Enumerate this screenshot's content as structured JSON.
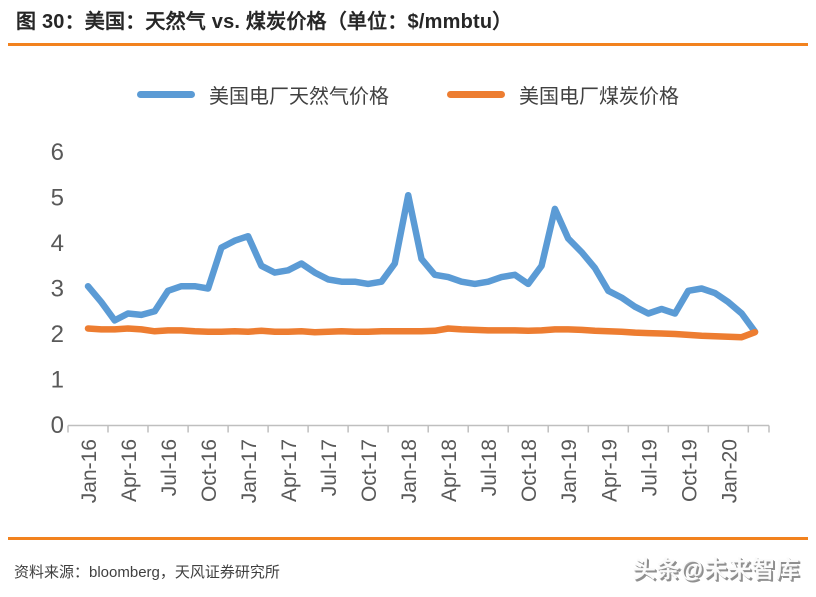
{
  "header": {
    "title": "图 30：美国：天然气 vs. 煤炭价格（单位：$/mmbtu）"
  },
  "chart_data": {
    "type": "line",
    "title": "美国：天然气 vs. 煤炭价格",
    "unit": "$/mmbtu",
    "x": [
      "Jan-16",
      "Feb-16",
      "Mar-16",
      "Apr-16",
      "May-16",
      "Jun-16",
      "Jul-16",
      "Aug-16",
      "Sep-16",
      "Oct-16",
      "Nov-16",
      "Dec-16",
      "Jan-17",
      "Feb-17",
      "Mar-17",
      "Apr-17",
      "May-17",
      "Jun-17",
      "Jul-17",
      "Aug-17",
      "Sep-17",
      "Oct-17",
      "Nov-17",
      "Dec-17",
      "Jan-18",
      "Feb-18",
      "Mar-18",
      "Apr-18",
      "May-18",
      "Jun-18",
      "Jul-18",
      "Aug-18",
      "Sep-18",
      "Oct-18",
      "Nov-18",
      "Dec-18",
      "Jan-19",
      "Feb-19",
      "Mar-19",
      "Apr-19",
      "May-19",
      "Jun-19",
      "Jul-19",
      "Aug-19",
      "Sep-19",
      "Oct-19",
      "Nov-19",
      "Dec-19",
      "Jan-20",
      "Feb-20",
      "Mar-20"
    ],
    "series": [
      {
        "name": "美国电厂天然气价格",
        "color": "#5b9bd5",
        "values": [
          3.05,
          2.7,
          2.3,
          2.45,
          2.42,
          2.5,
          2.95,
          3.05,
          3.05,
          3.0,
          3.9,
          4.05,
          4.15,
          3.5,
          3.35,
          3.4,
          3.55,
          3.35,
          3.2,
          3.15,
          3.15,
          3.1,
          3.15,
          3.55,
          5.05,
          3.65,
          3.3,
          3.25,
          3.15,
          3.1,
          3.15,
          3.25,
          3.3,
          3.1,
          3.5,
          4.75,
          4.1,
          3.8,
          3.45,
          2.95,
          2.8,
          2.6,
          2.45,
          2.55,
          2.45,
          2.95,
          3.0,
          2.9,
          2.7,
          2.45,
          2.05
        ]
      },
      {
        "name": "美国电厂煤炭价格",
        "color": "#ed7d31",
        "values": [
          2.12,
          2.1,
          2.1,
          2.12,
          2.1,
          2.06,
          2.08,
          2.08,
          2.06,
          2.05,
          2.05,
          2.06,
          2.05,
          2.07,
          2.05,
          2.05,
          2.06,
          2.04,
          2.05,
          2.06,
          2.05,
          2.05,
          2.06,
          2.06,
          2.06,
          2.06,
          2.07,
          2.12,
          2.1,
          2.09,
          2.08,
          2.08,
          2.08,
          2.07,
          2.08,
          2.1,
          2.1,
          2.09,
          2.07,
          2.06,
          2.05,
          2.03,
          2.02,
          2.01,
          2.0,
          1.98,
          1.96,
          1.95,
          1.94,
          1.93,
          2.04
        ]
      }
    ],
    "xticks": [
      "Jan-16",
      "Apr-16",
      "Jul-16",
      "Oct-16",
      "Jan-17",
      "Apr-17",
      "Jul-17",
      "Oct-17",
      "Jan-18",
      "Apr-18",
      "Jul-18",
      "Oct-18",
      "Jan-19",
      "Apr-19",
      "Jul-19",
      "Oct-19",
      "Jan-20"
    ],
    "yticks": [
      0,
      1,
      2,
      3,
      4,
      5,
      6
    ],
    "ylim": [
      0,
      6
    ],
    "grid": false,
    "legend_position": "top"
  },
  "footer": {
    "source": "资料来源：bloomberg，天风证券研究所",
    "watermark": "头条@未来智库"
  },
  "colors": {
    "accent_rule": "#f2821e",
    "axis_text": "#595959",
    "axis_line": "#bfbfbf",
    "title_text": "#262626",
    "gas_line": "#5b9bd5",
    "coal_line": "#ed7d31"
  }
}
